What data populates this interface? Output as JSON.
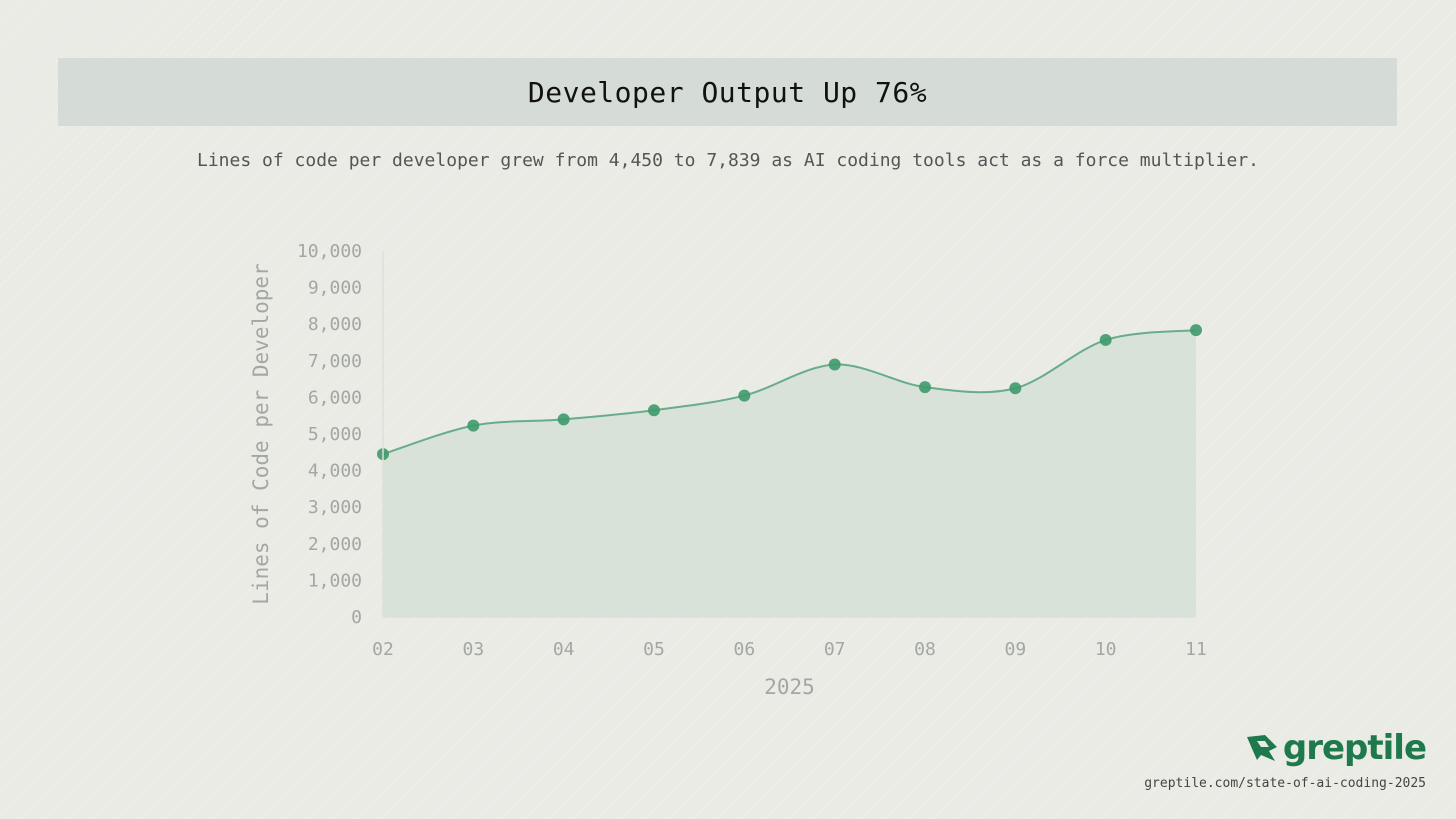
{
  "header": {
    "title": "Developer Output Up 76%",
    "subtitle": "Lines of code per developer grew from 4,450 to 7,839 as AI coding tools act as a force multiplier."
  },
  "chart_data": {
    "type": "area",
    "categories": [
      "02",
      "03",
      "04",
      "05",
      "06",
      "07",
      "08",
      "09",
      "10",
      "11"
    ],
    "values": [
      4450,
      5230,
      5400,
      5650,
      6050,
      6900,
      6280,
      6250,
      7570,
      7839
    ],
    "xlabel": "2025",
    "ylabel": "Lines of Code per Developer",
    "ylim": [
      0,
      10000
    ],
    "yticks": [
      0,
      1000,
      2000,
      3000,
      4000,
      5000,
      6000,
      7000,
      8000,
      9000,
      10000
    ],
    "ytick_labels": [
      "0",
      "1,000",
      "2,000",
      "3,000",
      "4,000",
      "5,000",
      "6,000",
      "7,000",
      "8,000",
      "9,000",
      "10,000"
    ],
    "line_color": "#3f9a6c",
    "fill_color": "#d8e2d9",
    "grid": false
  },
  "brand": {
    "name": "greptile",
    "color": "#1e7a4c",
    "icon": "greptile-logo-icon",
    "source_url": "greptile.com/state-of-ai-coding-2025"
  }
}
